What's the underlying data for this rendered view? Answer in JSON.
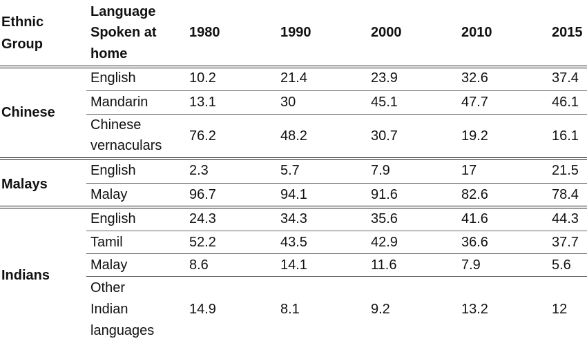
{
  "header": {
    "ethnic_group_line1": "Ethnic",
    "ethnic_group_line2": "Group",
    "language_line1": "Language",
    "language_line2": "Spoken at",
    "language_line3": "home",
    "years": [
      "1980",
      "1990",
      "2000",
      "2010",
      "2015"
    ]
  },
  "groups": [
    {
      "name": "Chinese",
      "rows": [
        {
          "language": [
            "English"
          ],
          "values": [
            "10.2",
            "21.4",
            "23.9",
            "32.6",
            "37.4"
          ]
        },
        {
          "language": [
            "Mandarin"
          ],
          "values": [
            "13.1",
            "30",
            "45.1",
            "47.7",
            "46.1"
          ]
        },
        {
          "language": [
            "Chinese",
            "vernaculars"
          ],
          "values": [
            "76.2",
            "48.2",
            "30.7",
            "19.2",
            "16.1"
          ]
        }
      ]
    },
    {
      "name": "Malays",
      "rows": [
        {
          "language": [
            "English"
          ],
          "values": [
            "2.3",
            "5.7",
            "7.9",
            "17",
            "21.5"
          ]
        },
        {
          "language": [
            "Malay"
          ],
          "values": [
            "96.7",
            "94.1",
            "91.6",
            "82.6",
            "78.4"
          ]
        }
      ]
    },
    {
      "name": "Indians",
      "rows": [
        {
          "language": [
            "English"
          ],
          "values": [
            "24.3",
            "34.3",
            "35.6",
            "41.6",
            "44.3"
          ]
        },
        {
          "language": [
            "Tamil"
          ],
          "values": [
            "52.2",
            "43.5",
            "42.9",
            "36.6",
            "37.7"
          ]
        },
        {
          "language": [
            "Malay"
          ],
          "values": [
            "8.6",
            "14.1",
            "11.6",
            "7.9",
            "5.6"
          ]
        },
        {
          "language": [
            "Other",
            "Indian",
            "languages"
          ],
          "values": [
            "14.9",
            "8.1",
            "9.2",
            "13.2",
            "12"
          ]
        }
      ]
    }
  ]
}
